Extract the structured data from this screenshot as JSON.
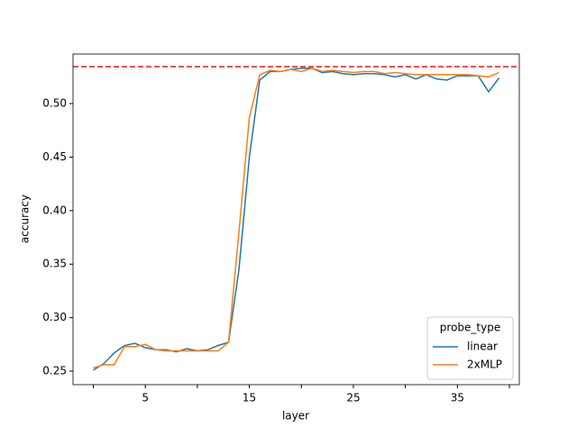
{
  "chart_data": {
    "type": "line",
    "xlabel": "layer",
    "ylabel": "accuracy",
    "x": [
      0,
      1,
      2,
      3,
      4,
      5,
      6,
      7,
      8,
      9,
      10,
      11,
      12,
      13,
      14,
      15,
      16,
      17,
      18,
      19,
      20,
      21,
      22,
      23,
      24,
      25,
      26,
      27,
      28,
      29,
      30,
      31,
      32,
      33,
      34,
      35,
      36,
      37,
      38,
      39
    ],
    "series": [
      {
        "name": "linear",
        "color": "#1f77b4",
        "values": [
          0.251,
          0.257,
          0.267,
          0.274,
          0.276,
          0.272,
          0.27,
          0.27,
          0.268,
          0.271,
          0.269,
          0.27,
          0.274,
          0.277,
          0.345,
          0.45,
          0.522,
          0.53,
          0.53,
          0.532,
          0.533,
          0.533,
          0.529,
          0.53,
          0.528,
          0.527,
          0.528,
          0.528,
          0.527,
          0.525,
          0.527,
          0.523,
          0.527,
          0.523,
          0.522,
          0.526,
          0.526,
          0.526,
          0.511,
          0.524
        ]
      },
      {
        "name": "2xMLP",
        "color": "#ff7f0e",
        "values": [
          0.253,
          0.256,
          0.256,
          0.273,
          0.273,
          0.275,
          0.27,
          0.269,
          0.269,
          0.269,
          0.269,
          0.269,
          0.269,
          0.277,
          0.38,
          0.487,
          0.527,
          0.531,
          0.53,
          0.532,
          0.53,
          0.533,
          0.53,
          0.531,
          0.53,
          0.529,
          0.53,
          0.53,
          0.528,
          0.529,
          0.528,
          0.527,
          0.527,
          0.527,
          0.527,
          0.527,
          0.527,
          0.526,
          0.525,
          0.529
        ]
      }
    ],
    "hline": {
      "value": 0.5345,
      "color": "#e41a1c",
      "dashed": true
    },
    "xlim": [
      -1.95,
      40.95
    ],
    "xticks": [
      5,
      15,
      25,
      35
    ],
    "xminor_ticks": [
      0,
      10,
      20,
      30,
      40
    ],
    "ylim": [
      0.2374,
      0.5463
    ],
    "yticks": [
      0.25,
      {
        "value": 0.3,
        "label": "0.30"
      },
      0.35,
      {
        "value": 0.4,
        "label": "0.40"
      },
      0.45,
      {
        "value": 0.5,
        "label": "0.50"
      }
    ],
    "legend_title": "probe_type",
    "legend": "lower right"
  }
}
